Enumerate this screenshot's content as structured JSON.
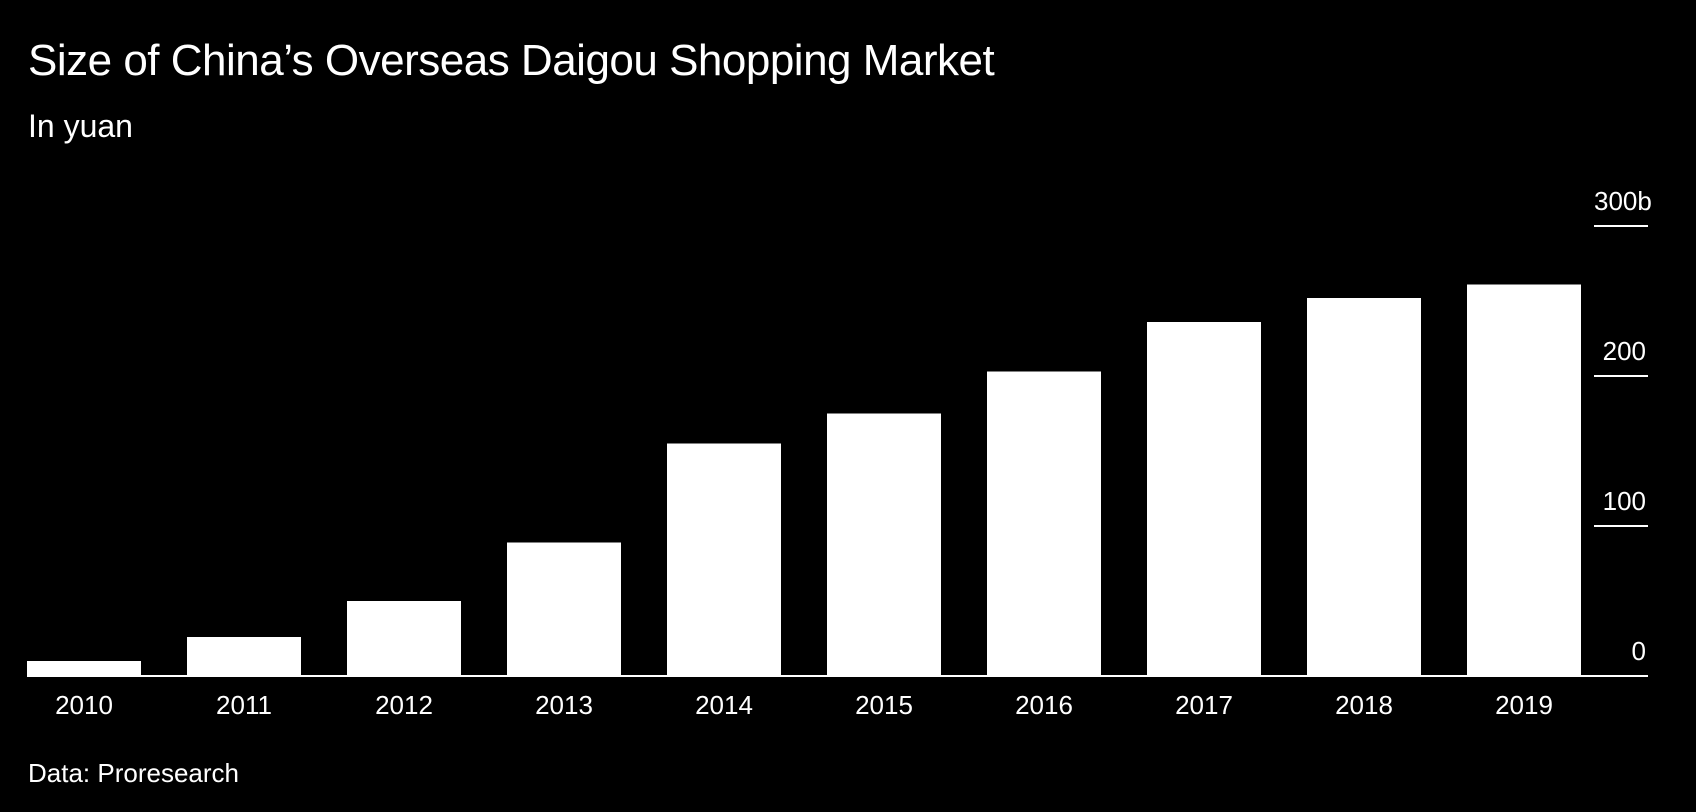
{
  "header": {
    "title": "Size of China’s Overseas Daigou Shopping Market",
    "subtitle": "In yuan"
  },
  "footer": {
    "source": "Data: Proresearch"
  },
  "colors": {
    "background": "#000000",
    "bar": "#ffffff",
    "text": "#ffffff"
  },
  "chart_data": {
    "type": "bar",
    "title": "Size of China’s Overseas Daigou Shopping Market",
    "subtitle": "In yuan",
    "categories": [
      "2010",
      "2011",
      "2012",
      "2013",
      "2014",
      "2015",
      "2016",
      "2017",
      "2018",
      "2019"
    ],
    "values": [
      10,
      26,
      50,
      89,
      155,
      175,
      203,
      236,
      252,
      261
    ],
    "ylim": [
      0,
      300
    ],
    "yticks": [
      0,
      100,
      200,
      300
    ],
    "ytick_labels": [
      "0",
      "100",
      "200",
      "300b"
    ],
    "y_axis_position": "right",
    "grid": false,
    "legend": "none"
  }
}
